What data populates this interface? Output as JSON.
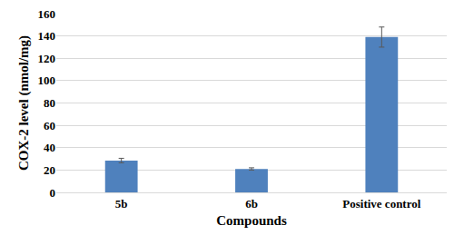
{
  "chart_data": {
    "type": "bar",
    "categories": [
      "5b",
      "6b",
      "Positive control"
    ],
    "values": [
      28.5,
      21,
      139
    ],
    "errors": [
      2,
      1,
      9
    ],
    "color": "#4f81bd",
    "x_label": "Compounds",
    "y_label": "COX-2 level (nmol/mg)",
    "ylim": [
      0,
      160
    ],
    "yticks": [
      0,
      20,
      40,
      60,
      80,
      100,
      120,
      140,
      160
    ],
    "grid": true
  }
}
